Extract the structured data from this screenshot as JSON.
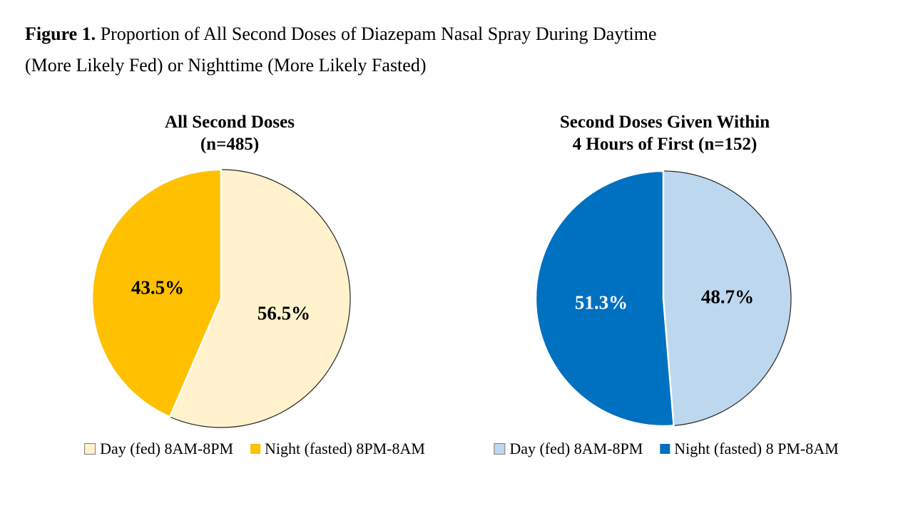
{
  "figure_title": {
    "bold": "Figure 1.",
    "line1_rest": " Proportion of All Second Doses of Diazepam Nasal Spray During Daytime",
    "line2": "(More Likely Fed) or Nighttime (More Likely Fasted)"
  },
  "chart_data": [
    {
      "type": "pie",
      "title": "All Second Doses (n=485)",
      "title_lines": [
        "All Second Doses",
        "(n=485)"
      ],
      "n": 485,
      "start_angle": "12 o'clock",
      "direction": "clockwise",
      "legend_position": "bottom",
      "slices": [
        {
          "label": "Day (fed) 8AM-8PM",
          "value_pct": 56.5,
          "data_label": "56.5%",
          "color": "#FFF2CC",
          "data_label_color": "#000000",
          "outlined": true
        },
        {
          "label": "Night (fasted) 8PM-8AM",
          "value_pct": 43.5,
          "data_label": "43.5%",
          "color": "#FFC000",
          "data_label_color": "#000000",
          "outlined": false
        }
      ]
    },
    {
      "type": "pie",
      "title": "Second Doses Given Within 4 Hours of First (n=152)",
      "title_lines": [
        "Second Doses Given Within",
        "4 Hours of First (n=152)"
      ],
      "n": 152,
      "start_angle": "12 o'clock",
      "direction": "clockwise",
      "legend_position": "bottom",
      "slices": [
        {
          "label": "Day (fed) 8AM-8PM",
          "value_pct": 48.7,
          "data_label": "48.7%",
          "color": "#BDD7EE",
          "data_label_color": "#000000",
          "outlined": true
        },
        {
          "label": "Night (fasted) 8 PM-8AM",
          "value_pct": 51.3,
          "data_label": "51.3%",
          "color": "#0070C0",
          "data_label_color": "#FFFFFF",
          "outlined": false
        }
      ]
    }
  ],
  "style_colors": {
    "slice_outline": "#262626",
    "slice_separator": "#FFFFFF",
    "swatch_border": "#7F7F7F",
    "background": "#FFFFFF"
  }
}
